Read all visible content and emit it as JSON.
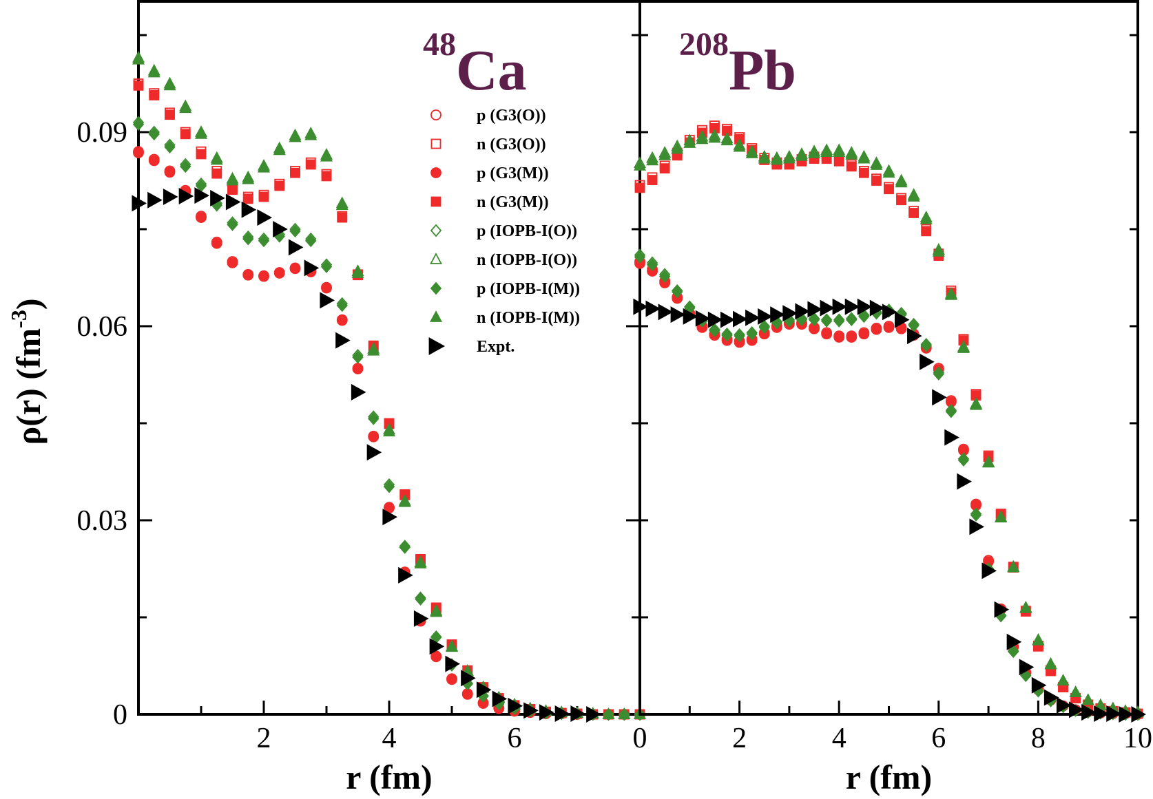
{
  "chart_data": [
    {
      "type": "scatter",
      "title_superscript": "48",
      "title": "Ca",
      "title_color": "#5b1f4a",
      "ylabel": "ρ(r) (fm",
      "ylabel_superscript": "-3",
      "ylabel_suffix": ")",
      "xlabel": "r (fm)",
      "xlim": [
        0,
        8
      ],
      "xticks": [
        2,
        4,
        6
      ],
      "xminorticks": [
        1,
        3,
        5,
        7
      ],
      "ylim": [
        0,
        0.11
      ],
      "yticks": [
        0,
        0.03,
        0.06,
        0.09
      ],
      "yminorticks": [
        0.015,
        0.045,
        0.075,
        0.105
      ],
      "legend": "upper right",
      "x": [
        0,
        0.25,
        0.5,
        0.75,
        1,
        1.25,
        1.5,
        1.75,
        2,
        2.25,
        2.5,
        2.75,
        3,
        3.25,
        3.5,
        3.75,
        4,
        4.25,
        4.5,
        4.75,
        5,
        5.25,
        5.5,
        5.75,
        6,
        6.25,
        6.5,
        6.75,
        7,
        7.25,
        7.5,
        7.75,
        8
      ],
      "series": [
        {
          "name": "p (G3(O))",
          "color": "#ee2a2a",
          "marker": "circle",
          "filled": false,
          "values": [
            0.087,
            0.0858,
            0.084,
            0.081,
            0.077,
            0.073,
            0.07,
            0.068,
            0.0678,
            0.0683,
            0.069,
            0.0685,
            0.066,
            0.061,
            0.0535,
            0.043,
            0.032,
            0.022,
            0.0145,
            0.009,
            0.0055,
            0.0032,
            0.0018,
            0.001,
            0.0005,
            0.0003,
            0.0001,
            0.0001,
            0,
            0,
            0,
            0,
            0
          ]
        },
        {
          "name": "n (G3(O))",
          "color": "#ee2a2a",
          "marker": "square",
          "filled": false,
          "values": [
            0.0975,
            0.096,
            0.093,
            0.09,
            0.087,
            0.084,
            0.0815,
            0.08,
            0.0803,
            0.082,
            0.084,
            0.0853,
            0.0835,
            0.077,
            0.068,
            0.057,
            0.045,
            0.034,
            0.024,
            0.0165,
            0.0108,
            0.0068,
            0.0042,
            0.0025,
            0.0014,
            0.0008,
            0.0004,
            0.0002,
            0.0001,
            0,
            0,
            0,
            0
          ]
        },
        {
          "name": "p (G3(M))",
          "color": "#ee2a2a",
          "marker": "circle",
          "filled": true,
          "values": [
            0.0868,
            0.0856,
            0.0838,
            0.0808,
            0.0768,
            0.0728,
            0.0698,
            0.0679,
            0.0677,
            0.0682,
            0.0689,
            0.0684,
            0.0659,
            0.0609,
            0.0534,
            0.0429,
            0.0319,
            0.0219,
            0.0144,
            0.0089,
            0.0054,
            0.0031,
            0.0017,
            0.0009,
            0.0005,
            0.0003,
            0.0001,
            0.0001,
            0,
            0,
            0,
            0,
            0
          ]
        },
        {
          "name": "n (G3(M))",
          "color": "#ee2a2a",
          "marker": "square",
          "filled": true,
          "values": [
            0.0972,
            0.0957,
            0.0927,
            0.0897,
            0.0866,
            0.0836,
            0.0811,
            0.0797,
            0.08,
            0.0817,
            0.0837,
            0.085,
            0.0832,
            0.0768,
            0.0679,
            0.0569,
            0.0449,
            0.0339,
            0.0239,
            0.0164,
            0.0107,
            0.0067,
            0.0041,
            0.0024,
            0.0014,
            0.0008,
            0.0004,
            0.0002,
            0.0001,
            0,
            0,
            0,
            0
          ]
        },
        {
          "name": "p (IOPB-I(O))",
          "color": "#3c8c30",
          "marker": "diamond",
          "filled": false,
          "values": [
            0.0915,
            0.09,
            0.088,
            0.085,
            0.082,
            0.079,
            0.076,
            0.0738,
            0.0735,
            0.0742,
            0.075,
            0.0735,
            0.0695,
            0.0635,
            0.0555,
            0.046,
            0.0355,
            0.026,
            0.018,
            0.012,
            0.0077,
            0.0048,
            0.0029,
            0.0017,
            0.0009,
            0.0005,
            0.0003,
            0.0001,
            0.0001,
            0,
            0,
            0,
            0
          ]
        },
        {
          "name": "n (IOPB-I(O))",
          "color": "#3c8c30",
          "marker": "triangle",
          "filled": false,
          "values": [
            0.1015,
            0.0995,
            0.0975,
            0.094,
            0.09,
            0.086,
            0.0828,
            0.083,
            0.0848,
            0.0875,
            0.0895,
            0.0898,
            0.0865,
            0.079,
            0.0685,
            0.0565,
            0.044,
            0.033,
            0.0235,
            0.016,
            0.0105,
            0.0067,
            0.0042,
            0.0026,
            0.0015,
            0.0009,
            0.0005,
            0.0003,
            0.0002,
            0.0001,
            0,
            0,
            0
          ]
        },
        {
          "name": "p (IOPB-I(M))",
          "color": "#3c8c30",
          "marker": "diamond",
          "filled": true,
          "values": [
            0.0912,
            0.0897,
            0.0877,
            0.0847,
            0.0817,
            0.0787,
            0.0757,
            0.0735,
            0.0732,
            0.0739,
            0.0747,
            0.0732,
            0.0692,
            0.0632,
            0.0552,
            0.0457,
            0.0352,
            0.0258,
            0.0178,
            0.0119,
            0.0076,
            0.0047,
            0.0028,
            0.0016,
            0.0009,
            0.0005,
            0.0002,
            0.0001,
            0.0001,
            0,
            0,
            0,
            0
          ]
        },
        {
          "name": "n (IOPB-I(M))",
          "color": "#3c8c30",
          "marker": "triangle",
          "filled": true,
          "values": [
            0.1012,
            0.0992,
            0.0972,
            0.0937,
            0.0897,
            0.0857,
            0.0825,
            0.0827,
            0.0845,
            0.0872,
            0.0892,
            0.0895,
            0.0862,
            0.0787,
            0.0682,
            0.0562,
            0.0437,
            0.0328,
            0.0233,
            0.0158,
            0.0104,
            0.0066,
            0.0041,
            0.0025,
            0.0015,
            0.0009,
            0.0005,
            0.0003,
            0.0002,
            0.0001,
            0,
            0,
            0
          ]
        },
        {
          "name": "Expt.",
          "color": "#000000",
          "marker": "arrow",
          "filled": true,
          "values": [
            0.079,
            0.0795,
            0.08,
            0.0801,
            0.0802,
            0.0798,
            0.0792,
            0.078,
            0.0768,
            0.075,
            0.0722,
            0.069,
            0.064,
            0.0578,
            0.0498,
            0.0405,
            0.0305,
            0.0215,
            0.0148,
            0.0105,
            0.0078,
            0.0056,
            0.0038,
            0.0024,
            0.0013,
            0.0006,
            0.0003,
            0.0001,
            0.0001,
            0,
            null,
            null,
            null
          ]
        }
      ]
    },
    {
      "type": "scatter",
      "title_superscript": "208",
      "title": "Pb",
      "title_color": "#5b1f4a",
      "xlabel": "r (fm)",
      "xlim": [
        0,
        10
      ],
      "xticks": [
        0,
        2,
        4,
        6,
        8,
        10
      ],
      "xminorticks": [
        1,
        3,
        5,
        7,
        9
      ],
      "ylim": [
        0,
        0.11
      ],
      "yminorticks": [
        0.015,
        0.03,
        0.045,
        0.06,
        0.075,
        0.09,
        0.105
      ],
      "x": [
        0,
        0.25,
        0.5,
        0.75,
        1,
        1.25,
        1.5,
        1.75,
        2,
        2.25,
        2.5,
        2.75,
        3,
        3.25,
        3.5,
        3.75,
        4,
        4.25,
        4.5,
        4.75,
        5,
        5.25,
        5.5,
        5.75,
        6,
        6.25,
        6.5,
        6.75,
        7,
        7.25,
        7.5,
        7.75,
        8,
        8.25,
        8.5,
        8.75,
        9,
        9.25,
        9.5,
        9.75,
        10
      ],
      "series": [
        {
          "color": "#ee2a2a",
          "marker": "circle",
          "filled": false,
          "values": [
            0.07,
            0.0688,
            0.067,
            0.0645,
            0.062,
            0.06,
            0.0588,
            0.058,
            0.0577,
            0.058,
            0.059,
            0.06,
            0.0605,
            0.0605,
            0.0598,
            0.059,
            0.0585,
            0.0585,
            0.059,
            0.0597,
            0.06,
            0.0598,
            0.0588,
            0.0568,
            0.0535,
            0.0485,
            0.041,
            0.0325,
            0.0238,
            0.0163,
            0.0105,
            0.0065,
            0.0039,
            0.0023,
            0.0013,
            0.0007,
            0.0004,
            0.0002,
            0.0001,
            0.0001,
            0
          ]
        },
        {
          "color": "#ee2a2a",
          "marker": "square",
          "filled": false,
          "values": [
            0.0818,
            0.083,
            0.0848,
            0.0868,
            0.0888,
            0.0903,
            0.091,
            0.0905,
            0.0892,
            0.0875,
            0.086,
            0.0853,
            0.0853,
            0.0858,
            0.0862,
            0.0862,
            0.0858,
            0.085,
            0.084,
            0.0828,
            0.0815,
            0.0798,
            0.0778,
            0.075,
            0.0712,
            0.0655,
            0.058,
            0.0495,
            0.04,
            0.031,
            0.0228,
            0.016,
            0.0106,
            0.0068,
            0.0042,
            0.0025,
            0.0015,
            0.0009,
            0.0005,
            0.0003,
            0.0001
          ]
        },
        {
          "color": "#ee2a2a",
          "marker": "circle",
          "filled": true,
          "values": [
            0.0697,
            0.0685,
            0.0667,
            0.0643,
            0.0618,
            0.0598,
            0.0586,
            0.0578,
            0.0575,
            0.0578,
            0.0588,
            0.0598,
            0.0603,
            0.0603,
            0.0596,
            0.0588,
            0.0583,
            0.0583,
            0.0588,
            0.0595,
            0.0598,
            0.0596,
            0.0586,
            0.0566,
            0.0533,
            0.0483,
            0.0408,
            0.0323,
            0.0236,
            0.0162,
            0.0104,
            0.0064,
            0.0038,
            0.0022,
            0.0013,
            0.0007,
            0.0004,
            0.0002,
            0.0001,
            0.0001,
            0
          ]
        },
        {
          "color": "#ee2a2a",
          "marker": "square",
          "filled": true,
          "values": [
            0.0814,
            0.0826,
            0.0844,
            0.0864,
            0.0884,
            0.0899,
            0.0906,
            0.0902,
            0.0889,
            0.0872,
            0.0857,
            0.085,
            0.085,
            0.0855,
            0.0859,
            0.0859,
            0.0855,
            0.0847,
            0.0837,
            0.0825,
            0.0812,
            0.0795,
            0.0775,
            0.0747,
            0.0709,
            0.0652,
            0.0578,
            0.0493,
            0.0398,
            0.0309,
            0.0227,
            0.0159,
            0.0105,
            0.0067,
            0.0042,
            0.0025,
            0.0015,
            0.0009,
            0.0005,
            0.0003,
            0.0001
          ]
        },
        {
          "color": "#3c8c30",
          "marker": "diamond",
          "filled": false,
          "values": [
            0.071,
            0.0698,
            0.068,
            0.0655,
            0.063,
            0.061,
            0.0595,
            0.0588,
            0.0587,
            0.059,
            0.06,
            0.0607,
            0.061,
            0.0612,
            0.0612,
            0.061,
            0.061,
            0.0612,
            0.0617,
            0.0622,
            0.0625,
            0.062,
            0.0603,
            0.0572,
            0.0528,
            0.047,
            0.0395,
            0.031,
            0.0225,
            0.0153,
            0.0098,
            0.006,
            0.0036,
            0.0021,
            0.0012,
            0.0006,
            0.0003,
            0.0002,
            0.0001,
            0,
            0
          ]
        },
        {
          "color": "#3c8c30",
          "marker": "triangle",
          "filled": false,
          "values": [
            0.0852,
            0.086,
            0.0868,
            0.0878,
            0.0887,
            0.0893,
            0.0895,
            0.089,
            0.088,
            0.087,
            0.0862,
            0.086,
            0.0862,
            0.0866,
            0.087,
            0.0872,
            0.0872,
            0.0868,
            0.0862,
            0.0852,
            0.084,
            0.0825,
            0.0803,
            0.0768,
            0.0718,
            0.065,
            0.0568,
            0.048,
            0.039,
            0.0305,
            0.0228,
            0.0165,
            0.0115,
            0.0078,
            0.0052,
            0.0034,
            0.0022,
            0.0014,
            0.0009,
            0.0005,
            0.0003
          ]
        },
        {
          "color": "#3c8c30",
          "marker": "diamond",
          "filled": true,
          "values": [
            0.0707,
            0.0695,
            0.0677,
            0.0653,
            0.0628,
            0.0608,
            0.0593,
            0.0586,
            0.0585,
            0.0588,
            0.0598,
            0.0605,
            0.0608,
            0.061,
            0.061,
            0.0608,
            0.0608,
            0.061,
            0.0615,
            0.062,
            0.0623,
            0.0618,
            0.0601,
            0.057,
            0.0526,
            0.0468,
            0.0393,
            0.0308,
            0.0224,
            0.0152,
            0.0097,
            0.006,
            0.0036,
            0.0021,
            0.0012,
            0.0006,
            0.0003,
            0.0002,
            0.0001,
            0,
            0
          ]
        },
        {
          "color": "#3c8c30",
          "marker": "triangle",
          "filled": true,
          "values": [
            0.0848,
            0.0856,
            0.0864,
            0.0874,
            0.0883,
            0.0889,
            0.0891,
            0.0887,
            0.0877,
            0.0867,
            0.0859,
            0.0857,
            0.0859,
            0.0863,
            0.0867,
            0.0869,
            0.0869,
            0.0865,
            0.0859,
            0.0849,
            0.0837,
            0.0822,
            0.08,
            0.0765,
            0.0715,
            0.0648,
            0.0566,
            0.0478,
            0.0389,
            0.0304,
            0.0227,
            0.0164,
            0.0114,
            0.0077,
            0.0052,
            0.0034,
            0.0022,
            0.0014,
            0.0009,
            0.0005,
            0.0003
          ]
        },
        {
          "color": "#000000",
          "marker": "arrow",
          "filled": true,
          "values": [
            0.063,
            0.0627,
            0.0622,
            0.0618,
            0.0615,
            0.0612,
            0.061,
            0.061,
            0.0611,
            0.0613,
            0.0615,
            0.0618,
            0.062,
            0.0623,
            0.0626,
            0.0628,
            0.063,
            0.063,
            0.063,
            0.0628,
            0.0622,
            0.061,
            0.0585,
            0.0545,
            0.049,
            0.0428,
            0.036,
            0.029,
            0.0222,
            0.0162,
            0.0112,
            0.0073,
            0.0045,
            0.0026,
            0.0014,
            0.0007,
            0.0003,
            0.0001,
            0.0001,
            0,
            0
          ]
        }
      ]
    }
  ]
}
